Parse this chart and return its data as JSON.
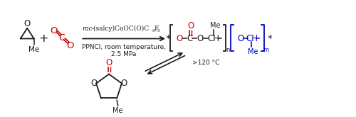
{
  "bg_color": "#ffffff",
  "figsize": [
    5.0,
    1.65
  ],
  "dpi": 100,
  "co2_color": "#cc0000",
  "black": "#1a1a1a",
  "blue": "#0000cc",
  "catalyst_italic": "rac",
  "catalyst_rest": "-(salcy)CoOC(O)C",
  "catalyst_sub1": "6",
  "catalyst_F": "F",
  "catalyst_sub2": "5",
  "cat_line2": "PPNCl, room temperature,",
  "cat_line3": "2.5 MPa",
  "reverse_label": ">120 °C",
  "fs_main": 8.5,
  "fs_cat": 6.5,
  "fs_sub": 6.0,
  "fs_label": 7.5
}
